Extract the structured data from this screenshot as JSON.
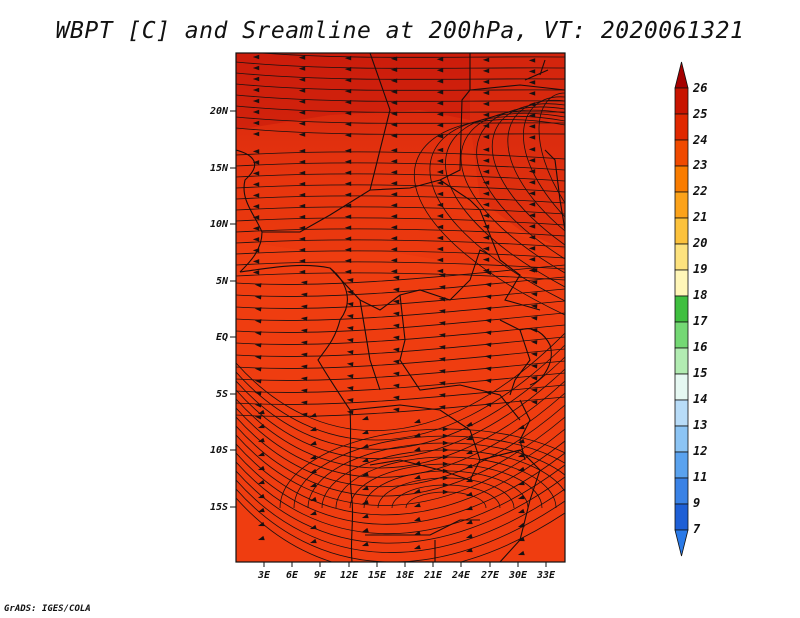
{
  "title": "WBPT [C] and Sreamline at 200hPa, VT: 2020061321",
  "credit": "GrADS: IGES/COLA",
  "map": {
    "lat_labels": [
      "20N",
      "15N",
      "10N",
      "5N",
      "EQ",
      "5S",
      "10S",
      "15S"
    ],
    "lon_labels": [
      "3E",
      "6E",
      "9E",
      "12E",
      "15E",
      "18E",
      "21E",
      "24E",
      "27E",
      "30E",
      "33E"
    ],
    "field": "WBPT",
    "units": "C",
    "level": "200hPa"
  },
  "colorbar": {
    "labels": [
      "26",
      "25",
      "24",
      "23",
      "22",
      "21",
      "20",
      "19",
      "18",
      "17",
      "16",
      "15",
      "14",
      "13",
      "12",
      "11",
      "9",
      "7"
    ],
    "colors": [
      "#a50000",
      "#c81400",
      "#e02800",
      "#f04a00",
      "#f97c00",
      "#fba21a",
      "#fcc23c",
      "#fde27e",
      "#fff6b8",
      "#3fbf3f",
      "#74d874",
      "#b2ecb2",
      "#e6f8f2",
      "#b8dcf8",
      "#8cc4f4",
      "#5aa2ee",
      "#3a82e6",
      "#1e5fd6",
      "#2a7ae8"
    ]
  },
  "colors": {
    "field_main": "#ef3d10",
    "field_north": "#d42410",
    "coast": "#1a0d0d"
  }
}
